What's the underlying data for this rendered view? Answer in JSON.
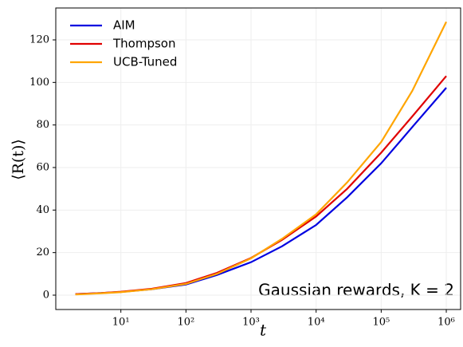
{
  "chart_data": {
    "type": "line",
    "xlabel": "t",
    "ylabel": "⟨R(t)⟩",
    "annotation": "Gaussian rewards, K = 2",
    "x": [
      2,
      5,
      10,
      30,
      100,
      300,
      1000,
      3000,
      10000,
      30000,
      100000,
      300000,
      1000000
    ],
    "series": [
      {
        "name": "AIM",
        "color": "#0000e0",
        "values": [
          0.5,
          1.0,
          1.5,
          2.8,
          5.0,
          9.5,
          15.5,
          23,
          33,
          46,
          62,
          79,
          97.5
        ]
      },
      {
        "name": "Thompson",
        "color": "#e00000",
        "values": [
          0.5,
          1.0,
          1.6,
          3.0,
          5.7,
          10.5,
          17.5,
          26,
          37,
          50,
          67,
          84,
          103
        ]
      },
      {
        "name": "UCB-Tuned",
        "color": "#ffa500",
        "values": [
          0.3,
          0.9,
          1.4,
          2.8,
          5.3,
          10,
          17.3,
          26.5,
          38,
          53,
          72,
          96,
          128.5
        ]
      }
    ],
    "xlog": true,
    "xlim": [
      1,
      1660000
    ],
    "xticks": [
      {
        "value": 10,
        "label": "10¹"
      },
      {
        "value": 100,
        "label": "10²"
      },
      {
        "value": 1000,
        "label": "10³"
      },
      {
        "value": 10000,
        "label": "10⁴"
      },
      {
        "value": 100000,
        "label": "10⁵"
      },
      {
        "value": 1000000,
        "label": "10⁶"
      }
    ],
    "ylim": [
      -6.75,
      135
    ],
    "yticks": [
      0,
      20,
      40,
      60,
      80,
      100,
      120
    ],
    "grid": true,
    "legend": "upper-left"
  }
}
